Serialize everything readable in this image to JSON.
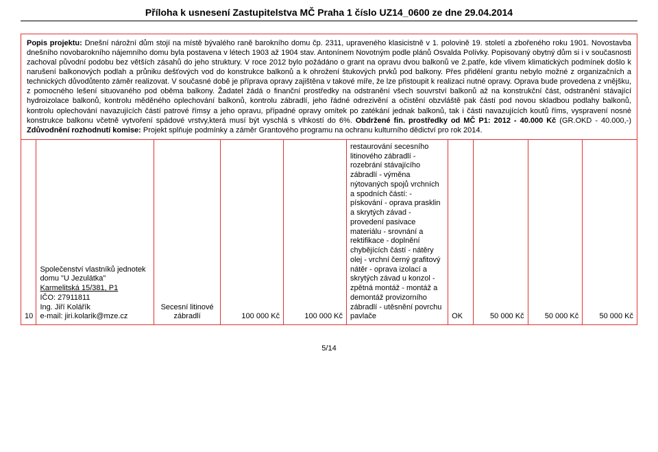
{
  "page": {
    "background_color": "#ffffff",
    "border_color": "#e03030",
    "text_color": "#000000",
    "font_family": "Arial, sans-serif"
  },
  "header": {
    "title": "Příloha k usnesení Zastupitelstva MČ Praha 1 číslo UZ14_0600 ze dne 29.04.2014"
  },
  "description": {
    "label": "Popis projektu:",
    "body": " Dnešní nárožní dům stojí na místě bývalého raně barokního domu čp. 2311, upraveného klasicistně v 1. polovině 19. století a zbořeného roku 1901. Novostavba dnešního novobarokního nájemního domu byla postavena v létech 1903 až 1904 stav. Antonínem Novotným podle plánů Osvalda Polívky. Popisovaný obytný dům si i v současnosti zachoval původní podobu bez větších zásahů do jeho struktury. V roce 2012 bylo požádáno o grant na opravu dvou balkonů ve 2.patře, kde vlivem klimatických podmínek došlo k narušení balkonových podlah a průniku dešťových vod do konstrukce balkonů a k ohrožení štukových prvků pod balkony. Přes přidělení grantu nebylo možné z organizačních a technických důvodůtento záměr realizovat. V současné době je příprava opravy zajištěna v takové míře, že lze přistoupit k realizaci nutné opravy. Oprava bude provedena z vnějšku, z pomocného lešení situovaného pod oběma balkony. Žadatel žádá o finanční prostředky na odstranění všech souvrství balkonů až na konstrukční část, odstranění stávající hydroizolace balkonů, kontrolu měděného oplechování balkonů, kontrolu zábradlí, jeho řádné odrezivění a očistění obzvláště pak částí pod novou skladbou podlahy balkonů, kontrolu oplechování navazujících částí patrové římsy a jeho opravu, případné opravy omítek po zatékání jednak balkonů, tak i části navazujících koutů říms, vyspravení nosné konstrukce balkonu včetně vytvoření spádové vrstvy,která musí být vyschlá s vlhkostí do 6%. ",
    "funds_label": "Obdržené fin. prostředky od MČ P1: 2012 - 40.000 Kč",
    "funds_tail": " (GR.OKD - 40.000,-) ",
    "decision_label": "Zdůvodnění rozhodnutí komise:",
    "decision_text": " Projekt splňuje podmínky a záměr Grantového programu na ochranu kulturního dědictví pro rok 2014."
  },
  "row": {
    "num": "10",
    "applicant": {
      "line1": "Společenství vlastníků jednotek",
      "line2": "domu \"U Jezulátka\"",
      "line3": "Karmelitská 15/381, P1",
      "line4": "IČO: 27911811",
      "line5": "Ing. Jiří Kolářík",
      "line6": "e-mail: jiri.kolarik@mze.cz"
    },
    "object": "Secesní litinové zábradlí",
    "amount1": "100 000 Kč",
    "amount2": "100 000 Kč",
    "work_description": "restaurování secesního litinového zábradlí - rozebrání stávajícího zábradlí - výměna nýtovaných spojů vrchních a spodních částí: - pískování - oprava prasklin a skrytých závad - provedení pasivace materiálu - srovnání a rektifikace - doplnění chybějících částí - nátěry  olej - vrchní černý grafitový nátěr - oprava izolací a skrytých závad u konzol - zpětná montáž - montáž a demontáž provizorního zábradlí - utěsnění povrchu pavlače",
    "status": "OK",
    "amount3": "50 000 Kč",
    "amount4": "50 000 Kč",
    "amount5": "50 000 Kč"
  },
  "footer": {
    "page_number": "5/14"
  }
}
